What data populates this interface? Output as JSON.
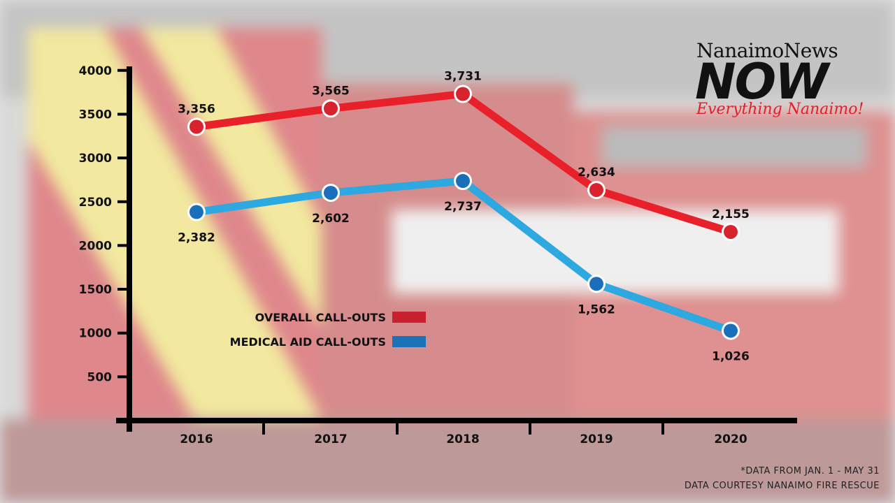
{
  "chart_data": {
    "type": "line",
    "categories": [
      "2016",
      "2017",
      "2018",
      "2019",
      "2020"
    ],
    "series": [
      {
        "name": "OVERALL CALL-OUTS",
        "values": [
          3356,
          3565,
          3731,
          2634,
          2155
        ],
        "labels": [
          "3,356",
          "3,565",
          "3,731",
          "2,634",
          "2,155"
        ],
        "color": "#e8202a"
      },
      {
        "name": "MEDICAL AID CALL-OUTS",
        "values": [
          2382,
          2602,
          2737,
          1562,
          1026
        ],
        "labels": [
          "2,382",
          "2,602",
          "2,737",
          "1,562",
          "1,026"
        ],
        "color": "#2ea8e0"
      }
    ],
    "yticks": [
      500,
      1000,
      1500,
      2000,
      2500,
      3000,
      3500,
      4000
    ],
    "ylim": [
      0,
      4000
    ],
    "legend_position": "center-left",
    "legend_colors": [
      "#c8202f",
      "#1a72b8"
    ],
    "marker_fills": [
      "#d8232f",
      "#1a6fba"
    ]
  },
  "logo": {
    "line1": "NanaimoNews",
    "line2": "NOW",
    "line3": "Everything Nanaimo!"
  },
  "footnotes": {
    "line1": "*DATA FROM JAN. 1 - MAY 31",
    "line2": "DATA COURTESY NANAIMO FIRE RESCUE"
  }
}
